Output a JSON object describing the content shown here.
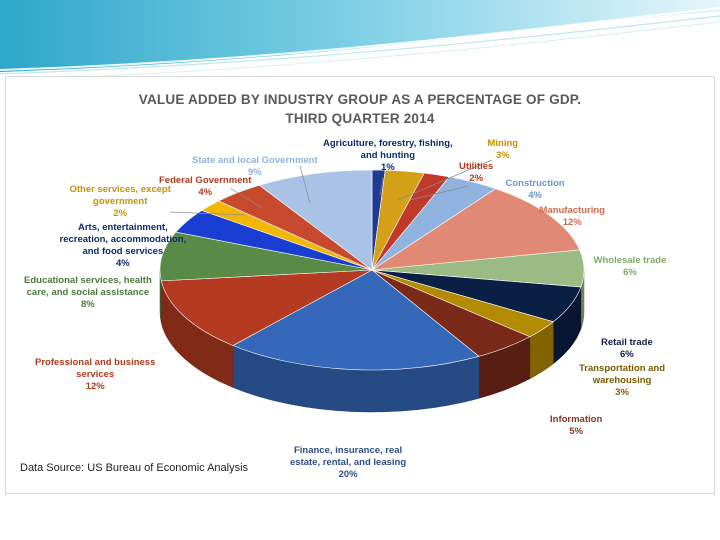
{
  "chart_data": {
    "type": "pie",
    "title": "VALUE ADDED BY INDUSTRY GROUP AS A PERCENTAGE OF GDP.",
    "subtitle": "THIRD QUARTER 2014",
    "categories": [
      "Agriculture, forestry, fishing, and hunting",
      "Mining",
      "Utilities",
      "Construction",
      "Manufacturing",
      "Wholesale trade",
      "Retail trade",
      "Transportation and warehousing",
      "Information",
      "Finance, insurance, real estate, rental, and leasing",
      "Professional and business services",
      "Educational services, health care, and social assistance",
      "Arts, entertainment, recreation, accommodation, and food services",
      "Other services, except government",
      "Federal Government",
      "State and local Government"
    ],
    "values": [
      1,
      3,
      2,
      4,
      12,
      6,
      6,
      3,
      5,
      20,
      12,
      8,
      4,
      2,
      4,
      9
    ],
    "value_labels": [
      "1%",
      "3%",
      "2%",
      "4%",
      "12%",
      "6%",
      "6%",
      "3%",
      "5%",
      "20%",
      "12%",
      "8%",
      "4%",
      "2%",
      "4%",
      "9%"
    ],
    "colors": [
      "#1f3a93",
      "#d4a017",
      "#c0392b",
      "#8fb3de",
      "#e08a76",
      "#9bbb84",
      "#0a1f44",
      "#b38b00",
      "#7b2a1a",
      "#3568b8",
      "#b53a22",
      "#5a8a47",
      "#1a3ed1",
      "#f2b705",
      "#c84a2e",
      "#a9c2e5"
    ],
    "label_colors": [
      "#0d2a6e",
      "#c79100",
      "#b33a1f",
      "#6d97c9",
      "#d4694c",
      "#7fa868",
      "#0d1f4a",
      "#7a5a00",
      "#8a3520",
      "#2c4d88",
      "#b33a1f",
      "#4b7a3a",
      "#0d2a6e",
      "#c79100",
      "#b33a1f",
      "#8fb3de"
    ],
    "label_lines": [
      [
        "Agriculture, forestry, fishing,",
        "and hunting"
      ],
      [
        "Mining"
      ],
      [
        "Utilities"
      ],
      [
        "Construction"
      ],
      [
        "Manufacturing"
      ],
      [
        "Wholesale trade"
      ],
      [
        "Retail trade"
      ],
      [
        "Transportation and",
        "warehousing"
      ],
      [
        "Information"
      ],
      [
        "Finance, insurance, real",
        "estate, rental, and leasing"
      ],
      [
        "Professional and business",
        "services"
      ],
      [
        "Educational services, health",
        "care, and social assistance"
      ],
      [
        "Arts, entertainment,",
        "recreation, accommodation,",
        "and food services"
      ],
      [
        "Other services, except",
        "government"
      ],
      [
        "Federal Government"
      ],
      [
        "State and local Government"
      ]
    ],
    "legend": "none"
  },
  "source_note": "Data Source: US Bureau of Economic Analysis"
}
